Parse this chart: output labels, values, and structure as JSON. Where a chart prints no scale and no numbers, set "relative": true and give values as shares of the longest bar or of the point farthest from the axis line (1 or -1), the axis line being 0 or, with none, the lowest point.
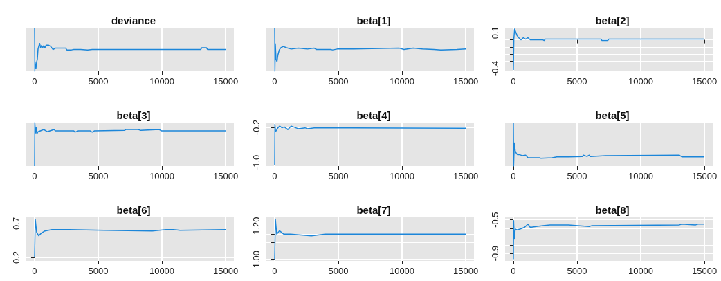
{
  "chart_data": [
    {
      "type": "line",
      "title": "deviance",
      "relative": true,
      "color": "#1c86d9",
      "grid": true,
      "xlim": [
        -650,
        15650
      ],
      "xticks": [
        0,
        5000,
        10000,
        15000
      ],
      "x": [
        1,
        18,
        36,
        109,
        163,
        217,
        272,
        326,
        399,
        471,
        543,
        634,
        725,
        815,
        906,
        1087,
        1268,
        1449,
        1630,
        1812,
        2174,
        2446,
        2536,
        2899,
        3080,
        3623,
        4167,
        4529,
        5072,
        13043,
        13134,
        13496,
        13587,
        15000
      ],
      "values": [
        1,
        0,
        0.22,
        0.07,
        0.21,
        0.28,
        0.51,
        0.57,
        0.64,
        0.54,
        0.59,
        0.54,
        0.59,
        0.54,
        0.6,
        0.6,
        0.57,
        0.5,
        0.53,
        0.53,
        0.53,
        0.53,
        0.49,
        0.49,
        0.5,
        0.5,
        0.49,
        0.5,
        0.5,
        0.5,
        0.54,
        0.54,
        0.5,
        0.5
      ]
    },
    {
      "type": "line",
      "title": "beta[1]",
      "relative": true,
      "color": "#1c86d9",
      "grid": true,
      "xlim": [
        -650,
        15650
      ],
      "xticks": [
        0,
        5000,
        10000,
        15000
      ],
      "x": [
        1,
        18,
        54,
        108,
        181,
        253,
        361,
        488,
        669,
        940,
        1301,
        1843,
        2566,
        3108,
        3289,
        4373,
        4554,
        4915,
        6180,
        9794,
        10155,
        10878,
        11601,
        12505,
        13047,
        14312,
        15000
      ],
      "values": [
        1,
        0,
        0.63,
        0.28,
        0.22,
        0.37,
        0.49,
        0.54,
        0.57,
        0.54,
        0.51,
        0.53,
        0.51,
        0.53,
        0.5,
        0.5,
        0.49,
        0.51,
        0.51,
        0.53,
        0.5,
        0.53,
        0.51,
        0.5,
        0.49,
        0.5,
        0.51
      ]
    },
    {
      "type": "line",
      "title": "beta[2]",
      "color": "#1c86d9",
      "grid": true,
      "xlim": [
        -650,
        15650
      ],
      "xticks": [
        0,
        5000,
        10000,
        15000
      ],
      "ylim": [
        -0.44,
        0.17
      ],
      "yticks": [
        {
          "value": -0.4,
          "label": "-0.4"
        },
        {
          "value": -0.3,
          "label": null
        },
        {
          "value": -0.2,
          "label": null
        },
        {
          "value": -0.1,
          "label": null
        },
        {
          "value": 0,
          "label": null
        },
        {
          "value": 0.1,
          "label": "0.1"
        }
      ],
      "x": [
        1,
        36,
        91,
        182,
        291,
        418,
        599,
        781,
        962,
        1144,
        1326,
        1598,
        2325,
        2415,
        2506,
        6864,
        6955,
        7409,
        7500,
        15000
      ],
      "values": [
        -0.42,
        0.01,
        0.15,
        0.11,
        0.06,
        0.03,
        0,
        0.03,
        0.01,
        0.03,
        0,
        0,
        0,
        -0.01,
        0.01,
        0.01,
        -0.01,
        -0.01,
        0.01,
        0.01
      ]
    },
    {
      "type": "line",
      "title": "beta[3]",
      "relative": true,
      "color": "#1c86d9",
      "grid": true,
      "xlim": [
        -650,
        15650
      ],
      "xticks": [
        0,
        5000,
        10000,
        15000
      ],
      "x": [
        1,
        18,
        72,
        127,
        181,
        272,
        453,
        725,
        996,
        1540,
        1630,
        3080,
        3170,
        3442,
        4348,
        4529,
        4710,
        7065,
        7156,
        8152,
        8333,
        9783,
        9964,
        15000
      ],
      "values": [
        0,
        1,
        0.76,
        0.88,
        0.74,
        0.79,
        0.81,
        0.84,
        0.79,
        0.84,
        0.81,
        0.81,
        0.78,
        0.81,
        0.81,
        0.78,
        0.81,
        0.82,
        0.84,
        0.84,
        0.82,
        0.84,
        0.81,
        0.81
      ]
    },
    {
      "type": "line",
      "title": "beta[4]",
      "color": "#1c86d9",
      "grid": true,
      "xlim": [
        -650,
        15650
      ],
      "xticks": [
        0,
        5000,
        10000,
        15000
      ],
      "ylim": [
        -1.08,
        -0.09
      ],
      "yticks": [
        {
          "value": -1.0,
          "label": "-1.0"
        },
        {
          "value": -0.8,
          "label": null
        },
        {
          "value": -0.6,
          "label": null
        },
        {
          "value": -0.4,
          "label": null
        },
        {
          "value": -0.2,
          "label": "-0.2"
        }
      ],
      "x": [
        1,
        18,
        72,
        145,
        253,
        398,
        578,
        759,
        1030,
        1301,
        1843,
        2385,
        2566,
        3108,
        3289,
        15000
      ],
      "values": [
        -1.05,
        -0.13,
        -0.29,
        -0.27,
        -0.21,
        -0.17,
        -0.21,
        -0.19,
        -0.25,
        -0.17,
        -0.23,
        -0.21,
        -0.23,
        -0.21,
        -0.21,
        -0.22
      ]
    },
    {
      "type": "line",
      "title": "beta[5]",
      "relative": true,
      "color": "#1c86d9",
      "grid": true,
      "xlim": [
        -650,
        15650
      ],
      "xticks": [
        0,
        5000,
        10000,
        15000
      ],
      "x": [
        1,
        18,
        73,
        145,
        236,
        327,
        508,
        690,
        962,
        1144,
        1598,
        2052,
        2143,
        3051,
        3414,
        4322,
        5412,
        5503,
        5775,
        5956,
        6047,
        7228,
        13039,
        13220,
        15000
      ],
      "values": [
        1,
        0,
        0.53,
        0.35,
        0.29,
        0.26,
        0.26,
        0.24,
        0.25,
        0.19,
        0.19,
        0.19,
        0.18,
        0.19,
        0.21,
        0.21,
        0.22,
        0.25,
        0.22,
        0.25,
        0.22,
        0.24,
        0.25,
        0.21,
        0.21
      ]
    },
    {
      "type": "line",
      "title": "beta[6]",
      "color": "#1c86d9",
      "grid": true,
      "xlim": [
        -650,
        15650
      ],
      "xticks": [
        0,
        5000,
        10000,
        15000
      ],
      "ylim": [
        0.15,
        0.79
      ],
      "yticks": [
        {
          "value": 0.2,
          "label": "0.2"
        },
        {
          "value": 0.3,
          "label": null
        },
        {
          "value": 0.4,
          "label": null
        },
        {
          "value": 0.5,
          "label": null
        },
        {
          "value": 0.6,
          "label": null
        },
        {
          "value": 0.7,
          "label": "0.7"
        }
      ],
      "x": [
        1,
        54,
        163,
        326,
        543,
        815,
        1359,
        2717,
        5435,
        9239,
        10326,
        10870,
        11413,
        15000
      ],
      "values": [
        0.2,
        0.76,
        0.57,
        0.52,
        0.56,
        0.59,
        0.61,
        0.61,
        0.6,
        0.59,
        0.61,
        0.61,
        0.6,
        0.61
      ]
    },
    {
      "type": "line",
      "title": "beta[7]",
      "color": "#1c86d9",
      "grid": true,
      "xlim": [
        -650,
        15650
      ],
      "xticks": [
        0,
        5000,
        10000,
        15000
      ],
      "ylim": [
        0.99,
        1.25
      ],
      "yticks": [
        {
          "value": 1.0,
          "label": "1.00"
        },
        {
          "value": 1.05,
          "label": null
        },
        {
          "value": 1.1,
          "label": null
        },
        {
          "value": 1.15,
          "label": null
        },
        {
          "value": 1.2,
          "label": "1.20"
        }
      ],
      "x": [
        1,
        54,
        163,
        380,
        707,
        1250,
        2880,
        3967,
        6141,
        6685,
        15000
      ],
      "values": [
        1.0,
        1.24,
        1.15,
        1.17,
        1.15,
        1.15,
        1.14,
        1.15,
        1.15,
        1.15,
        1.15
      ]
    },
    {
      "type": "line",
      "title": "beta[8]",
      "color": "#1c86d9",
      "grid": true,
      "xlim": [
        -650,
        15650
      ],
      "xticks": [
        0,
        5000,
        10000,
        15000
      ],
      "ylim": [
        -0.99,
        -0.47
      ],
      "yticks": [
        {
          "value": -0.9,
          "label": "-0.9"
        },
        {
          "value": -0.8,
          "label": null
        },
        {
          "value": -0.7,
          "label": null
        },
        {
          "value": -0.6,
          "label": null
        },
        {
          "value": -0.5,
          "label": "-0.5"
        }
      ],
      "x": [
        1,
        18,
        73,
        145,
        291,
        508,
        872,
        1144,
        1326,
        1780,
        2325,
        2870,
        4322,
        5956,
        6138,
        13039,
        13220,
        14310,
        14492,
        15000
      ],
      "values": [
        -0.97,
        -0.51,
        -0.73,
        -0.61,
        -0.62,
        -0.61,
        -0.59,
        -0.55,
        -0.59,
        -0.58,
        -0.57,
        -0.56,
        -0.56,
        -0.58,
        -0.57,
        -0.56,
        -0.55,
        -0.56,
        -0.55,
        -0.55
      ]
    }
  ]
}
